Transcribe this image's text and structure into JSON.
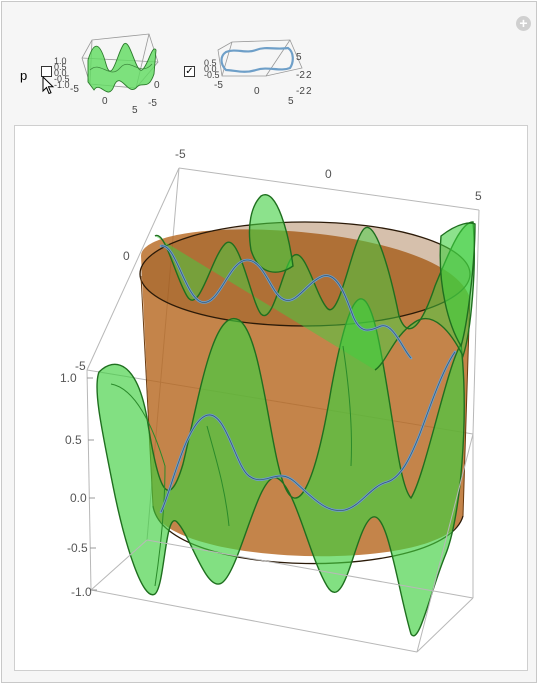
{
  "controls": {
    "p_label": "p",
    "checkbox1_checked": false,
    "checkbox2_checked": true,
    "check_mark": "✓",
    "plus_label": "+"
  },
  "thumb1": {
    "z_ticks": [
      "1.0",
      "0.5",
      "0.0",
      "-0.5",
      "-1.0"
    ],
    "x_ticks": [
      "-5",
      "0",
      "5"
    ],
    "y_ticks": [
      "-5",
      "0"
    ]
  },
  "thumb2": {
    "z_ticks": [
      "0.5",
      "0.0",
      "-0.5"
    ],
    "y_ticks": [
      "5",
      "2",
      "2"
    ],
    "x_ticks": [
      "-5",
      "0",
      "5"
    ],
    "extra_ticks": [
      "-2",
      "-2"
    ]
  },
  "plot": {
    "top_axis_ticks": [
      "-5",
      "0",
      "5"
    ],
    "left_axis_ticks": [
      "0",
      "-5"
    ],
    "z_axis_ticks": [
      "1.0",
      "0.5",
      "0.0",
      "-0.5",
      "-1.0"
    ],
    "colors": {
      "cylinder": "#b5651d",
      "surface": "#3fcf3f",
      "surface_edge": "#1f6f1f",
      "curve": "#6e9fc8",
      "box": "#b8b8b8"
    }
  }
}
